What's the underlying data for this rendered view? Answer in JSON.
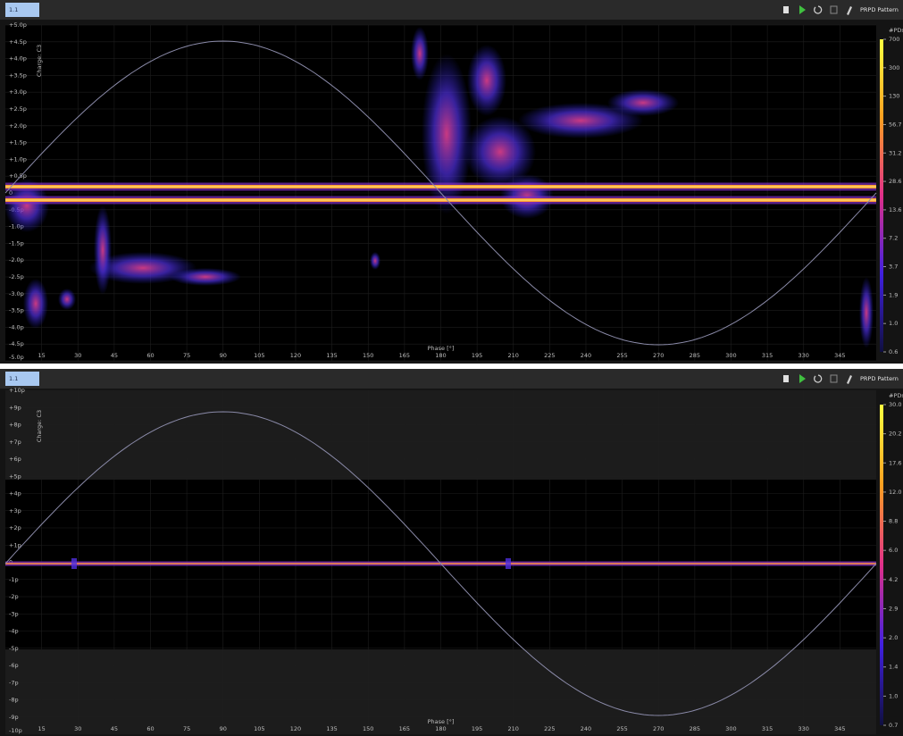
{
  "panels": [
    {
      "tab": "1.1",
      "title": "PRPD Pattern",
      "y_axis_label": "Charge: C3",
      "x_axis_label": "Phase [°]",
      "colorbar_unit": "#PDs",
      "y_ticks": [
        "+5.0p",
        "+4.5p",
        "+4.0p",
        "+3.5p",
        "+3.0p",
        "+2.5p",
        "+2.0p",
        "+1.5p",
        "+1.0p",
        "+0.5p",
        "0",
        "-0.5p",
        "-1.0p",
        "-1.5p",
        "-2.0p",
        "-2.5p",
        "-3.0p",
        "-3.5p",
        "-4.0p",
        "-4.5p",
        "-5.0p"
      ],
      "x_ticks": [
        "15",
        "30",
        "45",
        "60",
        "75",
        "90",
        "105",
        "120",
        "135",
        "150",
        "165",
        "180",
        "195",
        "210",
        "225",
        "240",
        "255",
        "270",
        "285",
        "300",
        "315",
        "330",
        "345"
      ],
      "colorbar_ticks": [
        "700",
        "300",
        "130",
        "56.7",
        "31.2",
        "28.6",
        "13.6",
        "7.2",
        "3.7",
        "1.9",
        "1.0",
        "0.6"
      ]
    },
    {
      "tab": "1.1",
      "title": "PRPD Pattern",
      "y_axis_label": "Charge: C3",
      "x_axis_label": "Phase [°]",
      "colorbar_unit": "#PDs",
      "y_ticks": [
        "+10p",
        "+9p",
        "+8p",
        "+7p",
        "+6p",
        "+5p",
        "+4p",
        "+3p",
        "+2p",
        "+1p",
        "0",
        "-1p",
        "-2p",
        "-3p",
        "-4p",
        "-5p",
        "-6p",
        "-7p",
        "-8p",
        "-9p",
        "-10p"
      ],
      "x_ticks": [
        "15",
        "30",
        "45",
        "60",
        "75",
        "90",
        "105",
        "120",
        "135",
        "150",
        "165",
        "180",
        "195",
        "210",
        "225",
        "240",
        "255",
        "270",
        "285",
        "300",
        "315",
        "330",
        "345"
      ],
      "colorbar_ticks": [
        "30.0",
        "20.2",
        "17.6",
        "12.0",
        "8.8",
        "6.0",
        "4.2",
        "2.9",
        "2.0",
        "1.4",
        "1.0",
        "0.7"
      ]
    }
  ]
}
